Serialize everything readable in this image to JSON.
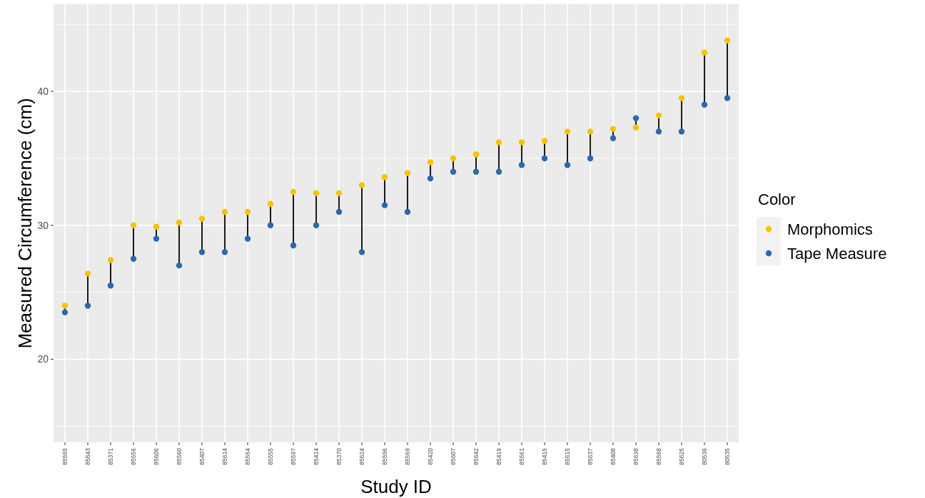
{
  "chart_data": {
    "type": "scatter",
    "xlabel": "Study ID",
    "ylabel": "Measured Circumference (cm)",
    "legend_title": "Color",
    "categories": [
      "85565",
      "85643",
      "85371",
      "85556",
      "85606",
      "85560",
      "85407",
      "85614",
      "85564",
      "85555",
      "85597",
      "85414",
      "85370",
      "85624",
      "85596",
      "85569",
      "85420",
      "85607",
      "85642",
      "85419",
      "85561",
      "85415",
      "85615",
      "85637",
      "85408",
      "85638",
      "85568",
      "85625",
      "80536",
      "80535"
    ],
    "series": [
      {
        "name": "Morphomics",
        "color": "#f8c300",
        "values": [
          24.0,
          26.4,
          27.4,
          30.0,
          29.9,
          30.2,
          30.5,
          31.0,
          31.0,
          31.6,
          32.5,
          32.4,
          32.4,
          33.0,
          33.6,
          33.9,
          34.7,
          35.0,
          35.3,
          36.2,
          36.2,
          36.3,
          37.0,
          37.0,
          37.2,
          37.3,
          38.2,
          39.5,
          42.9,
          43.8
        ]
      },
      {
        "name": "Tape Measure",
        "color": "#2a68b0",
        "values": [
          23.5,
          24.0,
          25.5,
          27.5,
          29.0,
          27.0,
          28.0,
          28.0,
          29.0,
          30.0,
          28.5,
          30.0,
          31.0,
          28.0,
          31.5,
          31.0,
          33.5,
          34.0,
          34.0,
          34.0,
          34.5,
          35.0,
          34.5,
          35.0,
          36.5,
          38.0,
          37.0,
          37.0,
          39.0,
          39.5
        ]
      }
    ],
    "ylim": [
      13.8,
      46.5
    ],
    "yticks": [
      20,
      30,
      40
    ],
    "grid": true,
    "legend": "right",
    "marker": "circle"
  }
}
